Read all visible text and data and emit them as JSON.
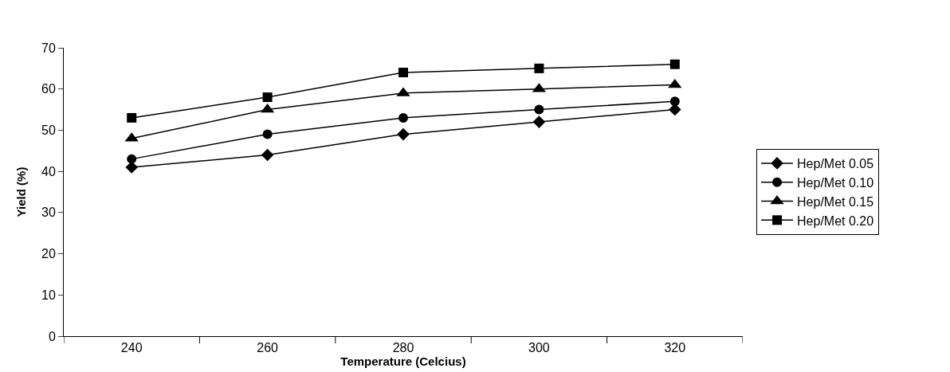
{
  "chart_data": {
    "type": "line",
    "xlabel": "Temperature (Celcius)",
    "ylabel": "Yield (%)",
    "categories": [
      "240",
      "260",
      "280",
      "300",
      "320"
    ],
    "series": [
      {
        "name": "Hep/Met 0.05",
        "color": "#000000",
        "marker": "diamond",
        "values": [
          41,
          44,
          49,
          52,
          55
        ]
      },
      {
        "name": "Hep/Met 0.10",
        "color": "#000000",
        "marker": "circle",
        "values": [
          43,
          49,
          53,
          55,
          57
        ]
      },
      {
        "name": "Hep/Met 0.15",
        "color": "#000000",
        "marker": "triangle",
        "values": [
          48,
          55,
          59,
          60,
          61
        ]
      },
      {
        "name": "Hep/Met 0.20",
        "color": "#000000",
        "marker": "square",
        "values": [
          53,
          58,
          64,
          65,
          66
        ]
      }
    ],
    "ylim": [
      0,
      70
    ],
    "yticks": [
      0,
      10,
      20,
      30,
      40,
      50,
      60,
      70
    ],
    "legend": "right",
    "line_style": "solid"
  }
}
